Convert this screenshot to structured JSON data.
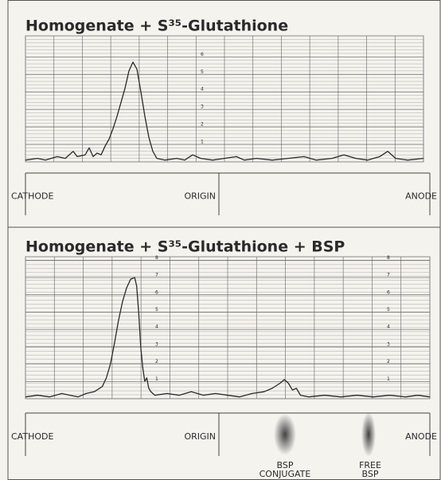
{
  "chart_data": [
    {
      "type": "line",
      "title": "Homogenate + S³⁵-Glutathione",
      "xlim": [
        0,
        100
      ],
      "ylim": [
        0,
        7.2
      ],
      "yticks": [
        1,
        2,
        3,
        4,
        5,
        6
      ],
      "color": "#2a2a2a",
      "grid": true,
      "x": [
        0,
        3,
        5,
        8,
        10,
        12,
        13,
        15,
        16,
        17,
        18,
        19,
        20,
        21,
        22,
        23,
        24,
        25,
        26,
        27,
        28,
        29,
        30,
        31,
        32,
        33,
        35,
        38,
        40,
        42,
        44,
        47,
        50,
        53,
        55,
        58,
        62,
        66,
        70,
        73,
        77,
        80,
        83,
        86,
        89,
        91,
        93,
        96,
        100
      ],
      "values": [
        0.1,
        0.2,
        0.1,
        0.3,
        0.2,
        0.6,
        0.3,
        0.4,
        0.8,
        0.3,
        0.5,
        0.4,
        0.9,
        1.3,
        1.9,
        2.6,
        3.4,
        4.2,
        5.2,
        5.7,
        5.3,
        4.0,
        2.6,
        1.4,
        0.6,
        0.2,
        0.1,
        0.2,
        0.1,
        0.4,
        0.2,
        0.1,
        0.2,
        0.3,
        0.1,
        0.2,
        0.1,
        0.2,
        0.3,
        0.1,
        0.2,
        0.4,
        0.2,
        0.1,
        0.3,
        0.6,
        0.2,
        0.1,
        0.2
      ],
      "labels": [
        "CATHODE",
        "ORIGIN",
        "ANODE"
      ]
    },
    {
      "type": "line",
      "title": "Homogenate + S³⁵-Glutathione + BSP",
      "xlim": [
        0,
        100
      ],
      "ylim": [
        0,
        8.2
      ],
      "yticks": [
        1,
        2,
        3,
        4,
        5,
        6,
        7,
        8
      ],
      "color": "#2a2a2a",
      "grid": true,
      "x": [
        0,
        3,
        6,
        9,
        11,
        13,
        15,
        17,
        19,
        20,
        21,
        22,
        23,
        24,
        25,
        26,
        27,
        27.5,
        28,
        28.5,
        29,
        29.5,
        30,
        30.5,
        31,
        32,
        35,
        38,
        41,
        44,
        47,
        50,
        53,
        56,
        59,
        61,
        63,
        64,
        65,
        66,
        67,
        68,
        70,
        74,
        78,
        82,
        86,
        90,
        94,
        97,
        100
      ],
      "values": [
        0.1,
        0.2,
        0.1,
        0.3,
        0.2,
        0.1,
        0.3,
        0.4,
        0.7,
        1.2,
        2.0,
        3.2,
        4.5,
        5.6,
        6.4,
        6.9,
        7.0,
        6.5,
        5.0,
        3.0,
        1.8,
        1.0,
        1.2,
        0.6,
        0.4,
        0.2,
        0.3,
        0.2,
        0.4,
        0.2,
        0.3,
        0.2,
        0.1,
        0.3,
        0.4,
        0.6,
        0.9,
        1.1,
        0.9,
        0.5,
        0.6,
        0.2,
        0.1,
        0.2,
        0.1,
        0.2,
        0.1,
        0.2,
        0.1,
        0.2,
        0.1
      ],
      "labels": [
        "CATHODE",
        "ORIGIN",
        "ANODE"
      ],
      "annotations": [
        [
          "BSP",
          "CONJUGATE"
        ],
        [
          "FREE",
          "BSP"
        ]
      ]
    }
  ]
}
